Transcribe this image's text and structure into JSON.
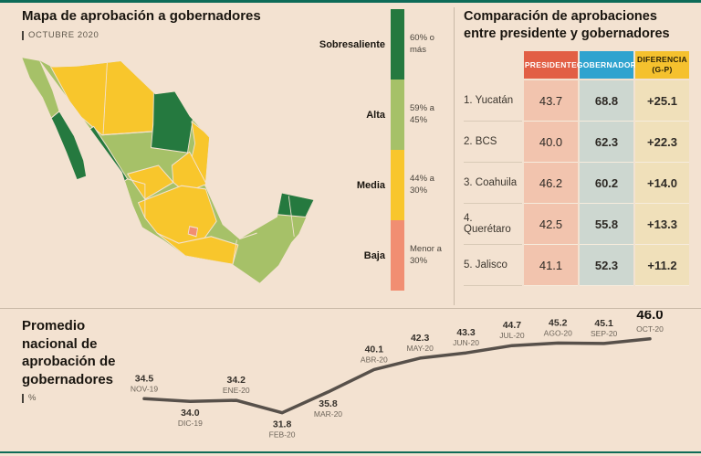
{
  "palette": {
    "bg": "#f3e2d1",
    "rule_teal": "#0e6b58",
    "divider": "#c9b9a7",
    "sobresaliente": "#25793f",
    "alta": "#a6c168",
    "media": "#f8c62c",
    "baja": "#f18e72",
    "presidente_header": "#e25f45",
    "gobernador_header": "#2fa3cf",
    "diferencia_header": "#f5c12e",
    "presidente_cell": "#f2c4ae",
    "gobernador_cell": "#cdd7d0",
    "diferencia_cell": "#f0e0ba",
    "trend_line": "#57504a"
  },
  "map_section": {
    "title": "Mapa de aprobación a gobernadores",
    "subtitle": "OCTUBRE 2020",
    "legend": [
      {
        "label": "Sobresaliente",
        "range": "60% o más"
      },
      {
        "label": "Alta",
        "range": "59% a 45%"
      },
      {
        "label": "Media",
        "range": "44% a 30%"
      },
      {
        "label": "Baja",
        "range": "Menor a 30%"
      }
    ]
  },
  "comparison_section": {
    "title": "Comparación de aprobaciones\nentre presidente y gobernadores"
  },
  "trend_section": {
    "title": "Promedio\nnacional de\naprobación de\ngobernadores",
    "unit": "%"
  },
  "chart_data": [
    {
      "type": "table",
      "title": "Comparación de aprobaciones entre presidente y gobernadores",
      "columns": [
        "",
        "PRESIDENTE",
        "GOBERNADOR",
        "DIFERENCIA\n(G-P)"
      ],
      "rows": [
        [
          "1. Yucatán",
          "43.7",
          "68.8",
          "+25.1"
        ],
        [
          "2. BCS",
          "40.0",
          "62.3",
          "+22.3"
        ],
        [
          "3. Coahuila",
          "46.2",
          "60.2",
          "+14.0"
        ],
        [
          "4. Querétaro",
          "42.5",
          "55.8",
          "+13.3"
        ],
        [
          "5. Jalisco",
          "41.1",
          "52.3",
          "+11.2"
        ]
      ]
    },
    {
      "type": "line",
      "title": "Promedio nacional de aprobación de gobernadores",
      "ylabel": "%",
      "x": [
        "NOV-19",
        "DIC-19",
        "ENE-20",
        "FEB-20",
        "MAR-20",
        "ABR-20",
        "MAY-20",
        "JUN-20",
        "JUL-20",
        "AGO-20",
        "SEP-20",
        "OCT-20"
      ],
      "values": [
        34.5,
        34.0,
        34.2,
        31.8,
        35.8,
        40.1,
        42.3,
        43.3,
        44.7,
        45.2,
        45.1,
        46.0
      ],
      "labels_below_indices": [
        1,
        3,
        4
      ],
      "highlight_last": true,
      "ylim": [
        30,
        48
      ],
      "grid": false,
      "legend_position": "none"
    }
  ]
}
